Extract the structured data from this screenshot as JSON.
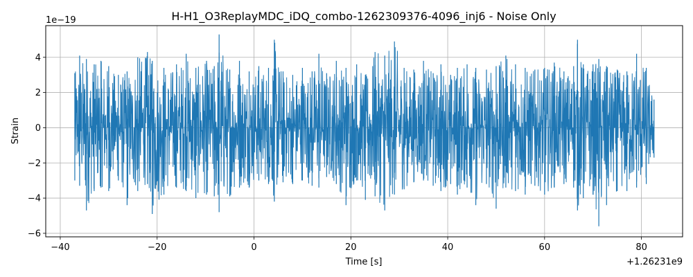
{
  "chart_data": {
    "type": "line",
    "title": "H-H1_O3ReplayMDC_iDQ_combo-1262309376-4096_inj6 - Noise Only",
    "xlabel": "Time [s]",
    "ylabel": "Strain",
    "x_offset_label": "+1.26231e9",
    "y_scale_label": "1e−19",
    "xlim": [
      -43,
      88.5
    ],
    "ylim": [
      -6.2,
      5.8
    ],
    "xticks": [
      -40,
      -20,
      0,
      20,
      40,
      60,
      80
    ],
    "xtick_labels": [
      "−40",
      "−20",
      "0",
      "20",
      "40",
      "60",
      "80"
    ],
    "yticks": [
      -6,
      -4,
      -2,
      0,
      2,
      4
    ],
    "ytick_labels": [
      "−6",
      "−4",
      "−2",
      "0",
      "2",
      "4"
    ],
    "grid": true,
    "series_color": "#1f77b4",
    "series": [
      {
        "x": [
          -37.0,
          -36.0,
          -34.6,
          -33.0,
          -31.6,
          -30.0,
          -28.0,
          -26.2,
          -24.0,
          -22.0,
          -21.0,
          -18.6,
          -16.0,
          -14.0,
          -12.0,
          -9.8,
          -8.2,
          -7.2,
          -5.0,
          -3.0,
          -1.0,
          1.0,
          3.0,
          4.2,
          6.0,
          8.0,
          10.0,
          12.0,
          13.4,
          15.0,
          17.0,
          19.0,
          21.2,
          23.0,
          25.0,
          27.0,
          29.0,
          31.0,
          33.0,
          35.0,
          37.0,
          38.6,
          40.6,
          42.0,
          44.0,
          45.8,
          48.0,
          50.0,
          52.0,
          54.0,
          56.0,
          58.0,
          60.0,
          62.0,
          64.0,
          66.0,
          66.8,
          68.0,
          70.0,
          71.2,
          72.8,
          75.0,
          77.0,
          79.0,
          81.0,
          82.6
        ],
        "y_max": [
          3.1,
          4.1,
          3.9,
          3.6,
          3.8,
          3.5,
          3.0,
          3.2,
          4.0,
          4.3,
          3.8,
          3.4,
          3.6,
          4.2,
          3.4,
          3.8,
          3.5,
          5.3,
          3.3,
          3.8,
          3.2,
          3.5,
          3.4,
          5.0,
          3.2,
          3.0,
          3.4,
          3.2,
          4.2,
          3.1,
          3.8,
          3.4,
          3.6,
          3.0,
          4.3,
          4.1,
          4.9,
          3.4,
          3.3,
          3.8,
          3.1,
          3.6,
          3.0,
          3.4,
          3.6,
          3.4,
          3.3,
          3.5,
          4.1,
          3.6,
          3.4,
          3.3,
          3.4,
          3.7,
          3.2,
          3.5,
          5.0,
          3.6,
          3.6,
          3.9,
          3.5,
          3.3,
          3.2,
          4.2,
          3.4,
          1.6
        ],
        "y_min": [
          -3.0,
          -3.3,
          -4.7,
          -3.6,
          -3.4,
          -3.6,
          -3.0,
          -4.4,
          -3.6,
          -3.2,
          -4.9,
          -3.8,
          -3.4,
          -3.6,
          -4.0,
          -3.8,
          -3.9,
          -4.8,
          -3.9,
          -3.4,
          -3.4,
          -3.0,
          -3.2,
          -4.2,
          -3.1,
          -3.2,
          -3.0,
          -3.3,
          -3.4,
          -2.8,
          -3.2,
          -4.4,
          -3.0,
          -4.1,
          -3.9,
          -4.7,
          -3.8,
          -3.5,
          -3.1,
          -3.0,
          -3.3,
          -3.6,
          -3.2,
          -3.8,
          -3.4,
          -4.4,
          -3.2,
          -4.6,
          -3.4,
          -3.6,
          -3.8,
          -3.3,
          -3.8,
          -3.4,
          -3.2,
          -3.4,
          -4.7,
          -4.0,
          -3.8,
          -5.6,
          -4.4,
          -3.6,
          -3.6,
          -3.4,
          -3.2,
          -1.7
        ]
      }
    ]
  }
}
